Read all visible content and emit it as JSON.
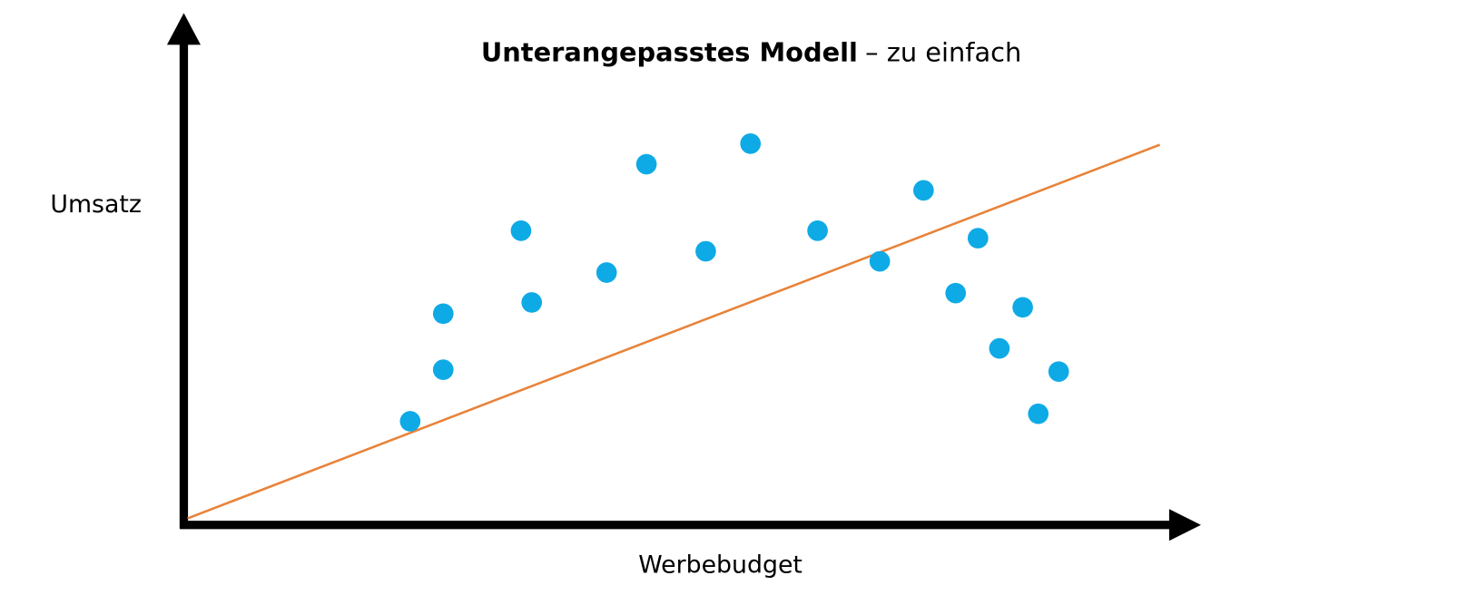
{
  "chart_data": {
    "type": "scatter",
    "title": {
      "bold": "Unterangepasstes Modell",
      "rest": "– zu einfach"
    },
    "x_label": "Werbebudget",
    "y_label": "Umsatz",
    "xlim": [
      0,
      100
    ],
    "ylim": [
      0,
      100
    ],
    "color": "#0eaae6",
    "x": [
      22.9,
      26.3,
      26.3,
      34.3,
      35.4,
      43.1,
      47.2,
      53.3,
      57.9,
      64.8,
      71.2,
      75.7,
      79.0,
      81.3,
      83.5,
      85.9,
      87.5,
      89.6
    ],
    "values": [
      26,
      39.8,
      54.8,
      77,
      57.8,
      65.8,
      94.8,
      71.5,
      100.3,
      77,
      68.8,
      87.8,
      60.3,
      75,
      45.5,
      56.5,
      28,
      39.3
    ],
    "fit_line": {
      "color": "#e8833a",
      "x": [
        0,
        100
      ],
      "values": [
        0,
        100
      ]
    }
  }
}
